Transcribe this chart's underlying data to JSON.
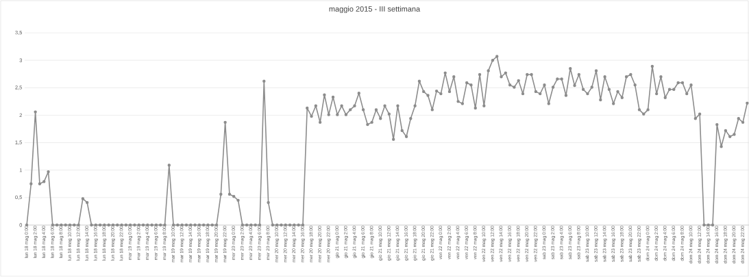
{
  "chart_data": {
    "type": "line",
    "title": "maggio 2015 - III settimana",
    "categories": [
      "lun 18 mag 0:00",
      null,
      "lun 18 mag 2:00",
      null,
      "lun 18 mag 4:00",
      null,
      "lun 18 mag 6:00",
      null,
      "lun 18 mag 8:00",
      null,
      "lun 18 mag 10:00",
      null,
      "lun 18 mag 12:00",
      null,
      "lun 18 mag 14:00",
      null,
      "lun 18 mag 16:00",
      null,
      "lun 18 mag 18:00",
      null,
      "lun 18 mag 20:00",
      null,
      "lun 18 mag 22:00",
      null,
      "mar 19 mag 0:00",
      null,
      "mar 19 mag 2:00",
      null,
      "mar 19 mag 4:00",
      null,
      "mar 19 mag 6:00",
      null,
      "mar 19 mag 8:00",
      null,
      "mar 19 mag 10:00",
      null,
      "mar 19 mag 12:00",
      null,
      "mar 19 mag 14:00",
      null,
      "mar 19 mag 16:00",
      null,
      "mar 19 mag 18:00",
      null,
      "mar 19 mag 20:00",
      null,
      "mar 19 mag 22:00",
      null,
      "mer 20 mag 0:00",
      null,
      "mer 20 mag 2:00",
      null,
      "mer 20 mag 4:00",
      null,
      "mer 20 mag 6:00",
      null,
      "mer 20 mag 8:00",
      null,
      "mer 20 mag 10:00",
      null,
      "mer 20 mag 12:00",
      null,
      "mer 20 mag 14:00",
      null,
      "mer 20 mag 16:00",
      null,
      "mer 20 mag 18:00",
      null,
      "mer 20 mag 20:00",
      null,
      "mer 20 mag 22:00",
      null,
      "gio 21 mag 0:00",
      null,
      "gio 21 mag 2:00",
      null,
      "gio 21 mag 4:00",
      null,
      "gio 21 mag 6:00",
      null,
      "gio 21 mag 8:00",
      null,
      "gio 21 mag 10:00",
      null,
      "gio 21 mag 12:00",
      null,
      "gio 21 mag 14:00",
      null,
      "gio 21 mag 16:00",
      null,
      "gio 21 mag 18:00",
      null,
      "gio 21 mag 20:00",
      null,
      "gio 21 mag 22:00",
      null,
      "ven 22 mag 0:00",
      null,
      "ven 22 mag 2:00",
      null,
      "ven 22 mag 4:00",
      null,
      "ven 22 mag 6:00",
      null,
      "ven 22 mag 8:00",
      null,
      "ven 22 mag 10:00",
      null,
      "ven 22 mag 12:00",
      null,
      "ven 22 mag 14:00",
      null,
      "ven 22 mag 16:00",
      null,
      "ven 22 mag 18:00",
      null,
      "ven 22 mag 20:00",
      null,
      "ven 22 mag 22:00",
      null,
      "sab 23 mag 0:00",
      null,
      "sab 23 mag 2:00",
      null,
      "sab 23 mag 4:00",
      null,
      "sab 23 mag 6:00",
      null,
      "sab 23 mag 8:00",
      null,
      "sab 23 mag 10:00",
      null,
      "sab 23 mag 12:00",
      null,
      "sab 23 mag 14:00",
      null,
      "sab 23 mag 16:00",
      null,
      "sab 23 mag 18:00",
      null,
      "sab 23 mag 20:00",
      null,
      "sab 23 mag 22:00",
      null,
      "dom 24 mag 0:00",
      null,
      "dom 24 mag 2:00",
      null,
      "dom 24 mag 4:00",
      null,
      "dom 24 mag 6:00",
      null,
      "dom 24 mag 8:00",
      null,
      "dom 24 mag 10:00",
      null,
      "dom 24 mag 12:00",
      null,
      "dom 24 mag 14:00",
      null,
      "dom 24 mag 16:00",
      null,
      "dom 24 mag 18:00",
      null,
      "dom 24 mag 20:00",
      null,
      "dom 24 mag 22:00",
      null
    ],
    "values": [
      0,
      0.75,
      2.06,
      0.75,
      0.79,
      0.97,
      0,
      0,
      0,
      0,
      0,
      0,
      0,
      0.48,
      0.41,
      0,
      0,
      0,
      0,
      0,
      0,
      0,
      0,
      0,
      0,
      0,
      0,
      0,
      0,
      0,
      0,
      0,
      0,
      1.09,
      0,
      0,
      0,
      0,
      0,
      0,
      0,
      0,
      0,
      0,
      0,
      0.56,
      1.87,
      0.56,
      0.52,
      0.45,
      0,
      0,
      0,
      0,
      0,
      2.62,
      0.41,
      0,
      0,
      0,
      0,
      0,
      0,
      0,
      0,
      2.13,
      1.98,
      2.17,
      1.87,
      2.37,
      2.01,
      2.33,
      2.01,
      2.17,
      2.01,
      2.1,
      2.17,
      2.4,
      2.1,
      1.83,
      1.87,
      2.1,
      1.94,
      2.17,
      2.02,
      1.56,
      2.17,
      1.72,
      1.61,
      1.94,
      2.17,
      2.62,
      2.43,
      2.36,
      2.1,
      2.44,
      2.39,
      2.77,
      2.43,
      2.7,
      2.25,
      2.21,
      2.59,
      2.55,
      2.13,
      2.74,
      2.17,
      2.81,
      3.0,
      3.07,
      2.7,
      2.77,
      2.55,
      2.51,
      2.63,
      2.39,
      2.74,
      2.74,
      2.43,
      2.39,
      2.55,
      2.21,
      2.51,
      2.66,
      2.66,
      2.36,
      2.85,
      2.54,
      2.74,
      2.47,
      2.39,
      2.51,
      2.81,
      2.28,
      2.7,
      2.47,
      2.21,
      2.43,
      2.32,
      2.7,
      2.74,
      2.55,
      2.1,
      2.02,
      2.1,
      2.89,
      2.39,
      2.7,
      2.32,
      2.47,
      2.47,
      2.59,
      2.59,
      2.39,
      2.55,
      1.94,
      2.02,
      0,
      0,
      0,
      1.83,
      1.43,
      1.72,
      1.61,
      1.65,
      1.94,
      1.87,
      2.22
    ],
    "color": "#8c8c8c",
    "marker": "circle",
    "grid": "y",
    "ylim": [
      0,
      3.5
    ],
    "yticks": [
      0,
      {
        "value": 0.5,
        "label": "0,5"
      },
      1,
      {
        "value": 1.5,
        "label": "1,5"
      },
      2,
      {
        "value": 2.5,
        "label": "2,5"
      },
      3,
      {
        "value": 3.5,
        "label": "3,5"
      }
    ]
  }
}
